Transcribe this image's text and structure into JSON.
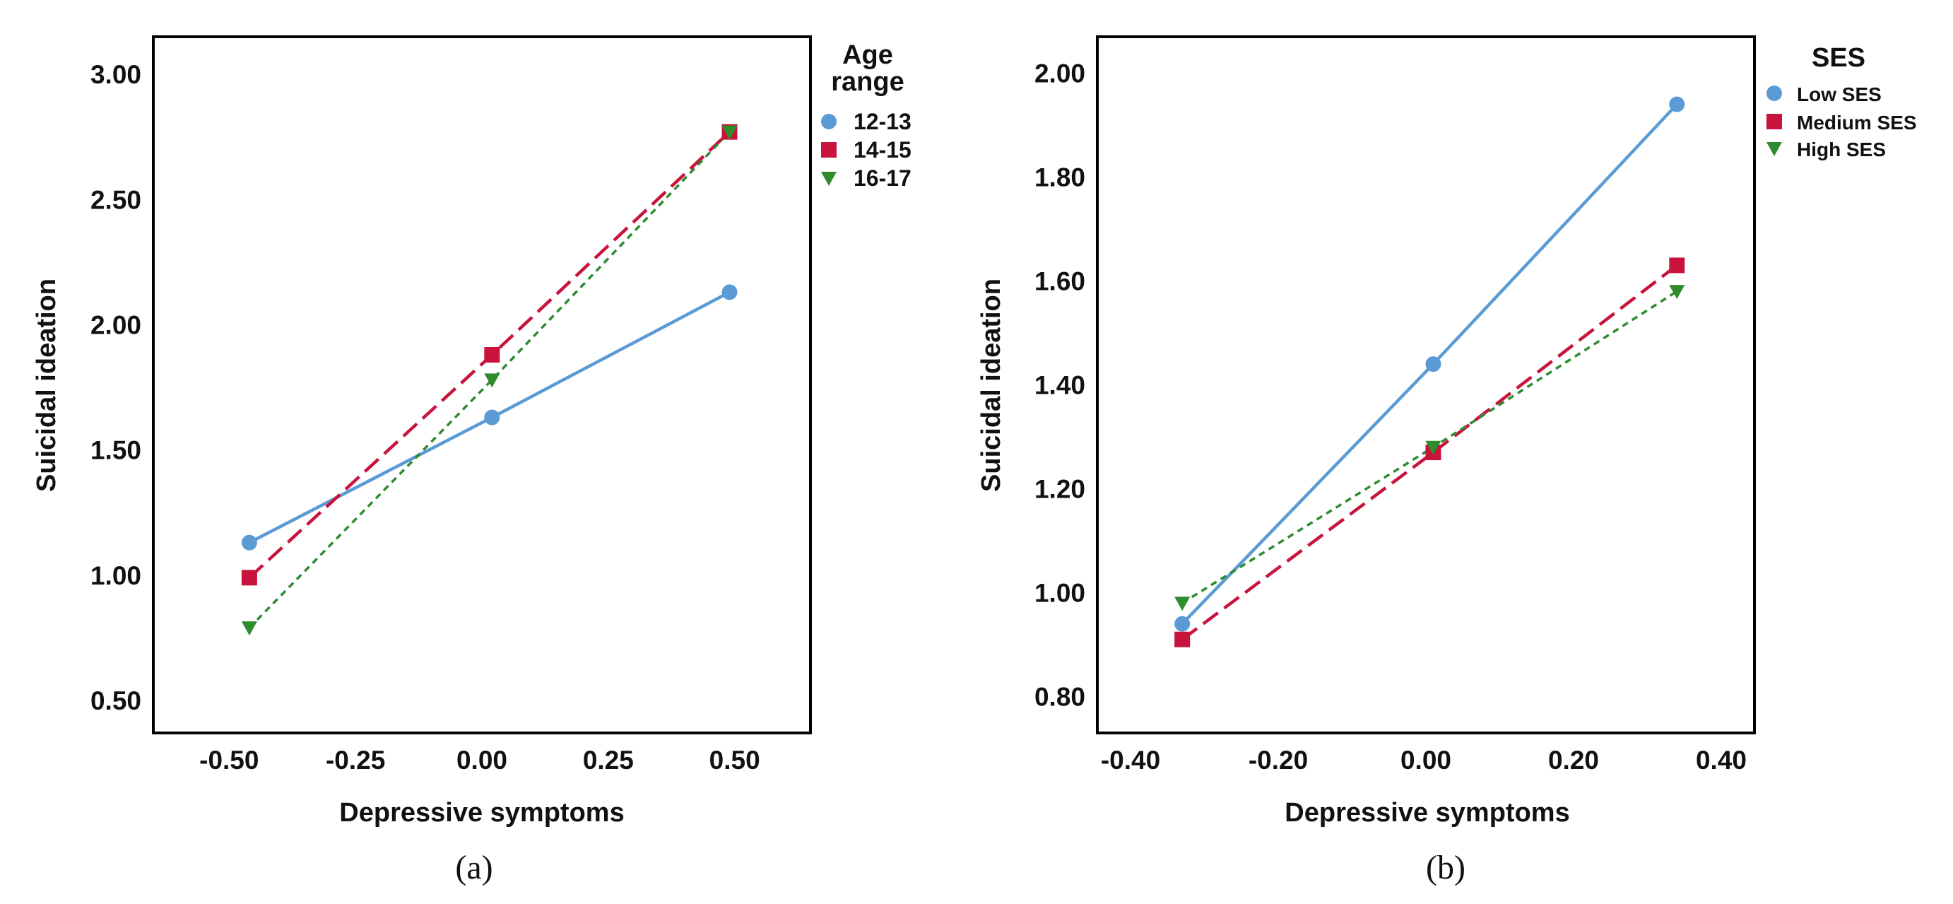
{
  "chart_data": [
    {
      "panel": "(a)",
      "type": "line",
      "xlabel": "Depressive symptoms",
      "ylabel": "Suicidal ideation",
      "xlim": [
        -0.65,
        0.65
      ],
      "ylim": [
        0.37,
        3.15
      ],
      "xticks": [
        -0.5,
        -0.25,
        0.0,
        0.25,
        0.5
      ],
      "xtick_labels": [
        "-0.50",
        "-0.25",
        "0.00",
        "0.25",
        "0.50"
      ],
      "yticks": [
        0.5,
        1.0,
        1.5,
        2.0,
        2.5,
        3.0
      ],
      "ytick_labels": [
        "0.50",
        "1.00",
        "1.50",
        "2.00",
        "2.50",
        "3.00"
      ],
      "legend_title": [
        "Age",
        "range"
      ],
      "legend_position": "right-outside",
      "series": [
        {
          "name": "12-13",
          "color": "#5b9bd5",
          "marker": "circle",
          "line": "solid",
          "x": [
            -0.46,
            0.02,
            0.49
          ],
          "y": [
            1.13,
            1.63,
            2.13
          ]
        },
        {
          "name": "14-15",
          "color": "#c8143c",
          "marker": "square",
          "line": "dashed",
          "x": [
            -0.46,
            0.02,
            0.49
          ],
          "y": [
            0.99,
            1.88,
            2.77
          ]
        },
        {
          "name": "16-17",
          "color": "#2e8b2e",
          "marker": "triangle-down",
          "line": "dotted",
          "x": [
            -0.46,
            0.02,
            0.49
          ],
          "y": [
            0.79,
            1.78,
            2.77
          ]
        }
      ]
    },
    {
      "panel": "(b)",
      "type": "line",
      "xlabel": "Depressive symptoms",
      "ylabel": "Suicidal ideation",
      "xlim": [
        -0.445,
        0.445
      ],
      "ylim": [
        0.73,
        2.07
      ],
      "xticks": [
        -0.4,
        -0.2,
        0.0,
        0.2,
        0.4
      ],
      "xtick_labels": [
        "-0.40",
        "-0.20",
        "0.00",
        "0.20",
        "0.40"
      ],
      "yticks": [
        0.8,
        1.0,
        1.2,
        1.4,
        1.6,
        1.8,
        2.0
      ],
      "ytick_labels": [
        "0.80",
        "1.00",
        "1.20",
        "1.40",
        "1.60",
        "1.80",
        "2.00"
      ],
      "legend_title": [
        "SES"
      ],
      "legend_position": "right-outside",
      "series": [
        {
          "name": "Low SES",
          "color": "#5b9bd5",
          "marker": "circle",
          "line": "solid",
          "x": [
            -0.33,
            0.01,
            0.34
          ],
          "y": [
            0.94,
            1.44,
            1.94
          ]
        },
        {
          "name": "Medium SES",
          "color": "#c8143c",
          "marker": "square",
          "line": "dashed",
          "x": [
            -0.33,
            0.01,
            0.34
          ],
          "y": [
            0.91,
            1.27,
            1.63
          ]
        },
        {
          "name": "High SES",
          "color": "#2e8b2e",
          "marker": "triangle-down",
          "line": "dotted",
          "x": [
            -0.33,
            0.01,
            0.34
          ],
          "y": [
            0.98,
            1.28,
            1.58
          ]
        }
      ]
    }
  ]
}
